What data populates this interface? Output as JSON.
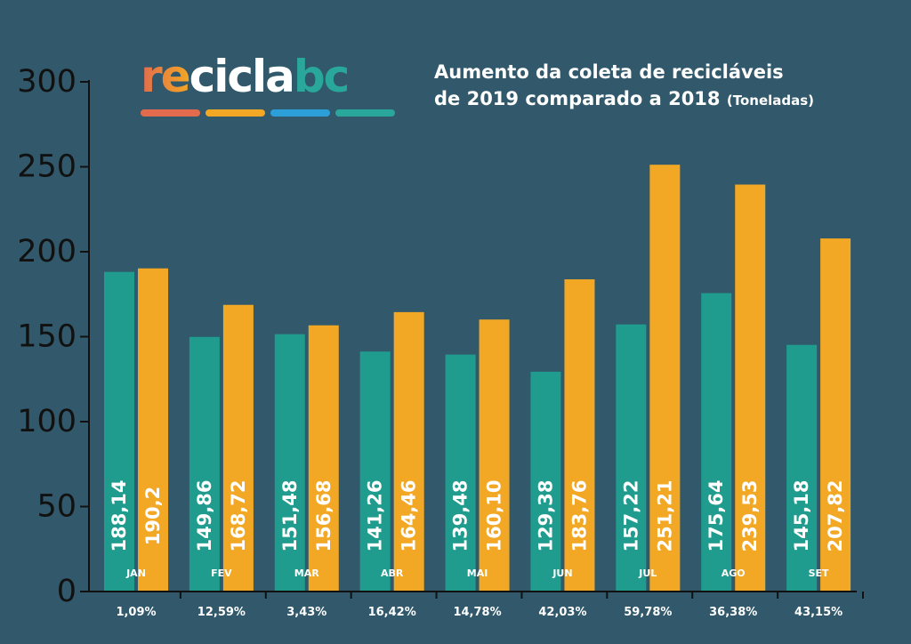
{
  "logo": {
    "part1": "re",
    "part2": "ciclabc"
  },
  "colors": {
    "background": "#31596b",
    "series_2018": "#1f9c8d",
    "series_2019": "#f2a725",
    "logo_bars": [
      "#e26b4e",
      "#f2a725",
      "#2d9fd8",
      "#2aa79b"
    ]
  },
  "chart_data": {
    "type": "bar",
    "title": "Aumento da coleta de recicláveis de 2019 comparado a 2018",
    "title_line1": "Aumento da coleta de recicláveis",
    "title_line2": "de 2019 comparado a 2018",
    "title_unit": "(Toneladas)",
    "categories": [
      "JAN",
      "FEV",
      "MAR",
      "ABR",
      "MAI",
      "JUN",
      "JUL",
      "AGO",
      "SET"
    ],
    "series": [
      {
        "values": [
          188.14,
          149.86,
          151.48,
          141.26,
          139.48,
          129.38,
          157.22,
          175.64,
          145.18
        ],
        "labels": [
          "188,14",
          "149,86",
          "151,48",
          "141,26",
          "139,48",
          "129,38",
          "157,22",
          "175,64",
          "145,18"
        ]
      },
      {
        "values": [
          190.2,
          168.72,
          156.68,
          164.46,
          160.1,
          183.76,
          251.21,
          239.53,
          207.82
        ],
        "labels": [
          "190,2",
          "168,72",
          "156,68",
          "164,46",
          "160,10",
          "183,76",
          "251,21",
          "239,53",
          "207,82"
        ]
      }
    ],
    "percentages": [
      "1,09%",
      "12,59%",
      "3,43%",
      "16,42%",
      "14,78%",
      "42,03%",
      "59,78%",
      "36,38%",
      "43,15%"
    ],
    "yticks": [
      0,
      50,
      100,
      150,
      200,
      250,
      300
    ],
    "ylim": [
      0,
      300
    ],
    "grid": false,
    "legend": "none"
  }
}
